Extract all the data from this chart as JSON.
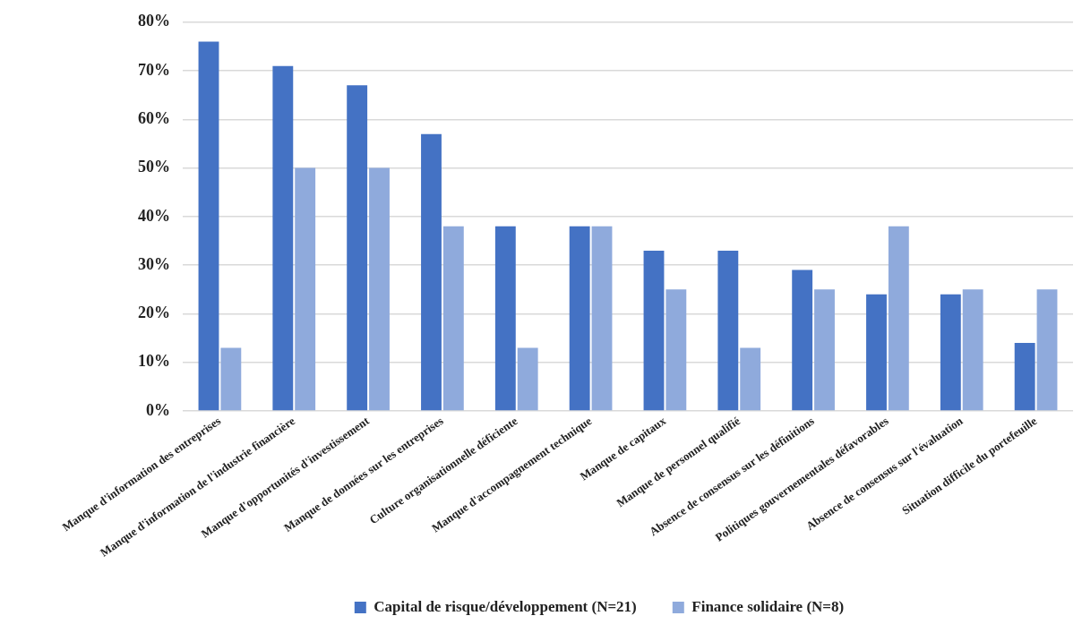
{
  "chart_data": {
    "type": "bar",
    "categories": [
      "Manque d'information des entreprises",
      "Manque d'information de l'industrie financière",
      "Manque d'opportunités d'investissement",
      "Manque de données sur les entreprises",
      "Culture organisationnelle déficiente",
      "Manque d'accompagnement technique",
      "Manque de capitaux",
      "Manque de personnel qualifié",
      "Absence de consensus sur les définitions",
      "Politiques gouvernementales défavorables",
      "Absence de consensus sur l'évaluation",
      "Situation difficile du portefeuille"
    ],
    "series": [
      {
        "name": "Capital de risque/développement (N=21)",
        "color": "#4472c4",
        "values": [
          76,
          71,
          67,
          57,
          38,
          38,
          33,
          33,
          29,
          24,
          24,
          14
        ]
      },
      {
        "name": "Finance solidaire (N=8)",
        "color": "#8faadc",
        "values": [
          13,
          50,
          50,
          38,
          13,
          38,
          25,
          13,
          25,
          38,
          25,
          25
        ]
      }
    ],
    "ylim": [
      0,
      80
    ],
    "yticks": [
      {
        "value": 0,
        "label": "0%"
      },
      {
        "value": 10,
        "label": "10%"
      },
      {
        "value": 20,
        "label": "20%"
      },
      {
        "value": 30,
        "label": "30%"
      },
      {
        "value": 40,
        "label": "40%"
      },
      {
        "value": 50,
        "label": "50%"
      },
      {
        "value": 60,
        "label": "60%"
      },
      {
        "value": 70,
        "label": "70%"
      },
      {
        "value": 80,
        "label": "80%"
      }
    ],
    "grid": "y",
    "legend": "bottom"
  }
}
